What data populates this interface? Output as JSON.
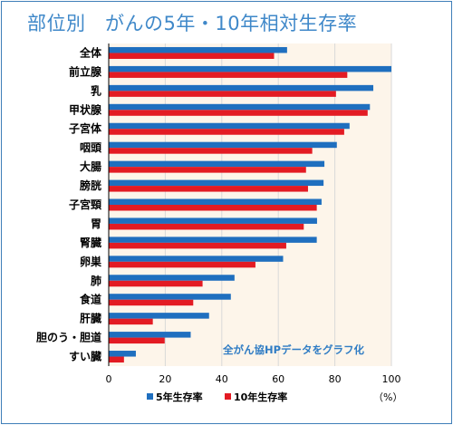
{
  "chart_data": {
    "type": "bar",
    "orientation": "horizontal",
    "title": "部位別　がんの5年・10年相対生存率",
    "categories": [
      "全体",
      "前立腺",
      "乳",
      "甲状腺",
      "子宮体",
      "咽頭",
      "大腸",
      "膀胱",
      "子宮頸",
      "胃",
      "腎臓",
      "卵巣",
      "肺",
      "食道",
      "肝臓",
      "胆のう・胆道",
      "すい臓"
    ],
    "series": [
      {
        "name": "5年生存率",
        "color": "#1f6fbf",
        "values": [
          63.1,
          100,
          93.6,
          92.4,
          85.2,
          80.7,
          76.3,
          76.0,
          75.3,
          73.7,
          73.6,
          61.7,
          44.5,
          43.2,
          35.5,
          29.0,
          9.6
        ]
      },
      {
        "name": "10年生存率",
        "color": "#e31b23",
        "values": [
          58.5,
          84.4,
          80.4,
          91.6,
          83.3,
          72.0,
          69.8,
          70.5,
          73.6,
          69.0,
          62.8,
          51.9,
          33.2,
          29.9,
          15.6,
          19.8,
          5.4
        ]
      }
    ],
    "x_ticks": [
      "0",
      "20",
      "40",
      "60",
      "80",
      "100"
    ],
    "xlim": [
      0,
      100
    ],
    "unit_label": "（%）",
    "annotation": "全がん協HPデータをグラフ化",
    "legend_position": "bottom"
  }
}
